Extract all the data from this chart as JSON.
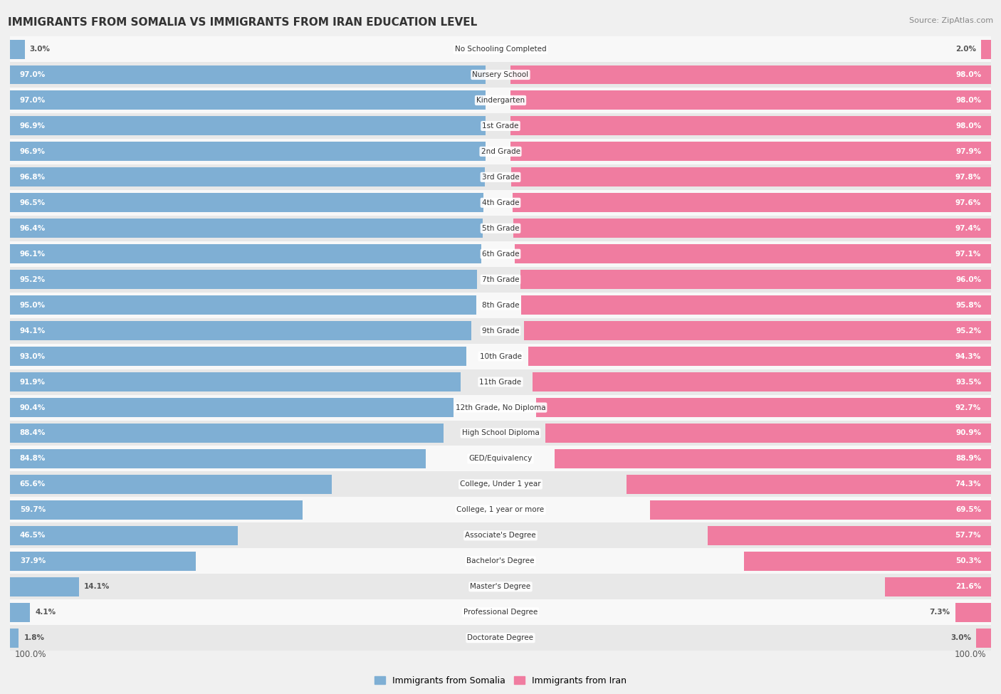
{
  "title": "IMMIGRANTS FROM SOMALIA VS IMMIGRANTS FROM IRAN EDUCATION LEVEL",
  "source": "Source: ZipAtlas.com",
  "categories": [
    "No Schooling Completed",
    "Nursery School",
    "Kindergarten",
    "1st Grade",
    "2nd Grade",
    "3rd Grade",
    "4th Grade",
    "5th Grade",
    "6th Grade",
    "7th Grade",
    "8th Grade",
    "9th Grade",
    "10th Grade",
    "11th Grade",
    "12th Grade, No Diploma",
    "High School Diploma",
    "GED/Equivalency",
    "College, Under 1 year",
    "College, 1 year or more",
    "Associate's Degree",
    "Bachelor's Degree",
    "Master's Degree",
    "Professional Degree",
    "Doctorate Degree"
  ],
  "somalia_values": [
    3.0,
    97.0,
    97.0,
    96.9,
    96.9,
    96.8,
    96.5,
    96.4,
    96.1,
    95.2,
    95.0,
    94.1,
    93.0,
    91.9,
    90.4,
    88.4,
    84.8,
    65.6,
    59.7,
    46.5,
    37.9,
    14.1,
    4.1,
    1.8
  ],
  "iran_values": [
    2.0,
    98.0,
    98.0,
    98.0,
    97.9,
    97.8,
    97.6,
    97.4,
    97.1,
    96.0,
    95.8,
    95.2,
    94.3,
    93.5,
    92.7,
    90.9,
    88.9,
    74.3,
    69.5,
    57.7,
    50.3,
    21.6,
    7.3,
    3.0
  ],
  "somalia_color": "#7fafd4",
  "iran_color": "#f07ca0",
  "background_color": "#f0f0f0",
  "row_bg_even": "#f8f8f8",
  "row_bg_odd": "#e8e8e8",
  "label_color_inside": "#ffffff",
  "label_color_outside": "#555555",
  "legend_somalia": "Immigrants from Somalia",
  "legend_iran": "Immigrants from Iran",
  "title_fontsize": 11,
  "source_fontsize": 8,
  "value_fontsize": 7.5,
  "cat_fontsize": 7.5
}
